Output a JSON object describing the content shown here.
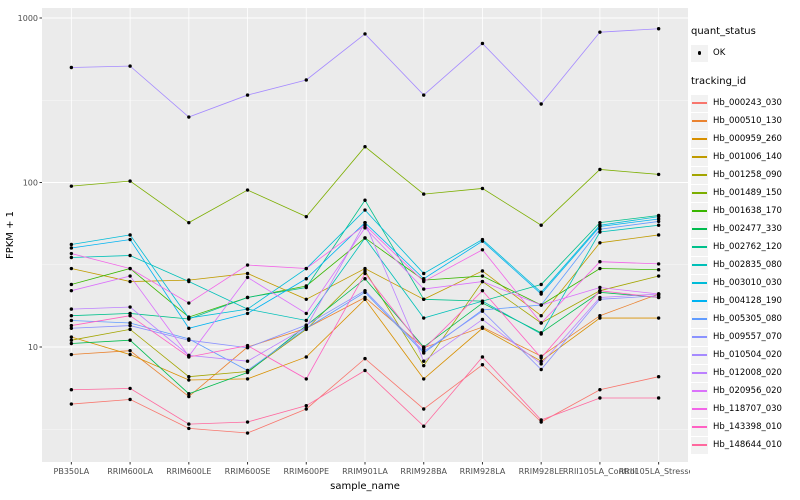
{
  "chart_data": {
    "type": "line",
    "title": "",
    "xlabel": "sample_name",
    "ylabel": "FPKM + 1",
    "y_scale": "log10",
    "grid": true,
    "legend_position": "right",
    "panel_bg": "#EBEBEB",
    "grid_color": "#FFFFFF",
    "point_color": "#000000",
    "y_ticks": [
      10,
      100,
      1000
    ],
    "y_tick_labels": [
      "10",
      "100",
      "1000"
    ],
    "y_minor_ticks": [
      3.162,
      31.62,
      316.2
    ],
    "y_range": [
      2,
      1150
    ],
    "categories": [
      "PB350LA",
      "RRIM600LA",
      "RRIM600LE",
      "RRIM600SE",
      "RRIM600PE",
      "RRIM901LA",
      "RRIM928BA",
      "RRIM928LA",
      "RRIM928LE",
      "RRII105LA_Control",
      "RRII105LA_Stressed"
    ],
    "series": [
      {
        "name": "Hb_000243_030",
        "color": "#F8766D",
        "values": [
          4.5,
          4.8,
          3.2,
          3.0,
          4.2,
          8.5,
          4.2,
          7.8,
          3.5,
          5.5,
          6.6
        ]
      },
      {
        "name": "Hb_000510_130",
        "color": "#EA8331",
        "values": [
          9.0,
          9.5,
          5.0,
          10.0,
          13.0,
          20.0,
          9.9,
          13.2,
          8.8,
          15.5,
          21.0
        ]
      },
      {
        "name": "Hb_000959_260",
        "color": "#D89000",
        "values": [
          11.5,
          9.0,
          6.3,
          6.4,
          8.7,
          19.5,
          6.4,
          13.0,
          8.2,
          15.0,
          15.0
        ]
      },
      {
        "name": "Hb_001006_140",
        "color": "#C09B00",
        "values": [
          30.0,
          25.0,
          25.5,
          28.0,
          19.5,
          30.0,
          19.5,
          29.0,
          15.5,
          43.0,
          48.0
        ]
      },
      {
        "name": "Hb_001258_090",
        "color": "#A3A500",
        "values": [
          11.0,
          12.8,
          6.6,
          7.1,
          12.8,
          29.0,
          7.7,
          25.0,
          14.0,
          22.0,
          27.0
        ]
      },
      {
        "name": "Hb_001489_150",
        "color": "#7CAE00",
        "values": [
          95,
          102,
          57,
          90,
          62,
          165,
          85,
          92,
          55,
          120,
          112
        ]
      },
      {
        "name": "Hb_001638_170",
        "color": "#39B600",
        "values": [
          24.0,
          30.0,
          15.2,
          20.0,
          23.5,
          46.0,
          25.5,
          27.0,
          18.0,
          30.0,
          29.5
        ]
      },
      {
        "name": "Hb_002477_330",
        "color": "#00BB4E",
        "values": [
          10.5,
          11.0,
          5.2,
          7.0,
          13.5,
          26.0,
          10.0,
          18.5,
          12.2,
          21.5,
          20.0
        ]
      },
      {
        "name": "Hb_002762_120",
        "color": "#00C08B",
        "values": [
          15.5,
          16.0,
          14.8,
          20.0,
          23.0,
          78.0,
          19.5,
          19.0,
          24.0,
          57.0,
          63.0
        ]
      },
      {
        "name": "Hb_002835_080",
        "color": "#00C0B8",
        "values": [
          35.0,
          36.0,
          25.0,
          17.0,
          14.5,
          46.0,
          15.0,
          19.0,
          12.0,
          50.0,
          55.0
        ]
      },
      {
        "name": "Hb_003010_030",
        "color": "#00BCD8",
        "values": [
          42.0,
          48.0,
          15.0,
          17.0,
          30.0,
          68.0,
          28.0,
          45.0,
          21.5,
          55.0,
          62.0
        ]
      },
      {
        "name": "Hb_004128_190",
        "color": "#00B3F2",
        "values": [
          40.0,
          45.0,
          13.0,
          16.0,
          26.0,
          57.0,
          26.0,
          44.0,
          21.0,
          54.0,
          60.0
        ]
      },
      {
        "name": "Hb_005305_080",
        "color": "#619CFF",
        "values": [
          14.5,
          14.0,
          11.2,
          7.2,
          13.0,
          21.5,
          9.2,
          16.8,
          18.0,
          52.0,
          58.0
        ]
      },
      {
        "name": "Hb_009557_070",
        "color": "#8A92FF",
        "values": [
          13.0,
          13.5,
          11.0,
          9.9,
          13.6,
          22.0,
          9.4,
          16.5,
          7.3,
          19.5,
          20.5
        ]
      },
      {
        "name": "Hb_010504_020",
        "color": "#A58AFF",
        "values": [
          500,
          510,
          250,
          340,
          420,
          800,
          340,
          700,
          300,
          820,
          860
        ]
      },
      {
        "name": "Hb_012008_020",
        "color": "#BC81FF",
        "values": [
          17.0,
          17.5,
          8.9,
          8.2,
          13.2,
          57.0,
          8.2,
          14.7,
          7.9,
          20.0,
          21.0
        ]
      },
      {
        "name": "Hb_020956_020",
        "color": "#DB72FB",
        "values": [
          22.0,
          27.0,
          8.8,
          26.5,
          16.0,
          53.0,
          22.5,
          25.0,
          18.0,
          23.0,
          21.0
        ]
      },
      {
        "name": "Hb_118707_030",
        "color": "#F265E8",
        "values": [
          37.0,
          30.0,
          18.5,
          31.5,
          30.0,
          55.0,
          25.0,
          39.0,
          14.0,
          33.0,
          32.0
        ]
      },
      {
        "name": "Hb_143398_010",
        "color": "#FF61C3",
        "values": [
          13.5,
          15.5,
          8.7,
          10.2,
          6.4,
          28.0,
          9.7,
          22.0,
          8.6,
          22.0,
          20.0
        ]
      },
      {
        "name": "Hb_148644_010",
        "color": "#FF689E",
        "values": [
          5.5,
          5.6,
          3.4,
          3.5,
          4.4,
          7.2,
          3.3,
          8.7,
          3.6,
          4.9,
          4.9
        ]
      }
    ]
  },
  "legend": {
    "quant_status_title": "quant_status",
    "quant_status_items": [
      {
        "label": "OK",
        "marker": "point"
      }
    ],
    "tracking_title": "tracking_id"
  }
}
